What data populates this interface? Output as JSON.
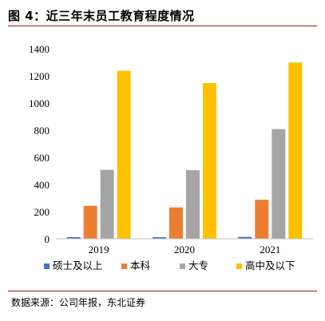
{
  "figure_title": "图 4：近三年末员工教育程度情况",
  "source_note": "数据来源：公司年报，东北证券",
  "colors": {
    "rule": "#8a1c1c",
    "series": [
      "#4472C4",
      "#ED7D31",
      "#A5A5A5",
      "#FFC000"
    ]
  },
  "chart_data": {
    "type": "bar",
    "title": "",
    "xlabel": "",
    "ylabel": "",
    "categories": [
      "2019",
      "2020",
      "2021"
    ],
    "series": [
      {
        "name": "硕士及以上",
        "values": [
          12,
          12,
          14
        ]
      },
      {
        "name": "本科",
        "values": [
          243,
          231,
          287
        ]
      },
      {
        "name": "大专",
        "values": [
          508,
          505,
          808
        ]
      },
      {
        "name": "高中及以下",
        "values": [
          1237,
          1147,
          1298
        ]
      }
    ],
    "ylim": [
      0,
      1400
    ],
    "yticks": [
      0,
      200,
      400,
      600,
      800,
      1000,
      1200,
      1400
    ],
    "grid": false,
    "legend": "bottom"
  }
}
